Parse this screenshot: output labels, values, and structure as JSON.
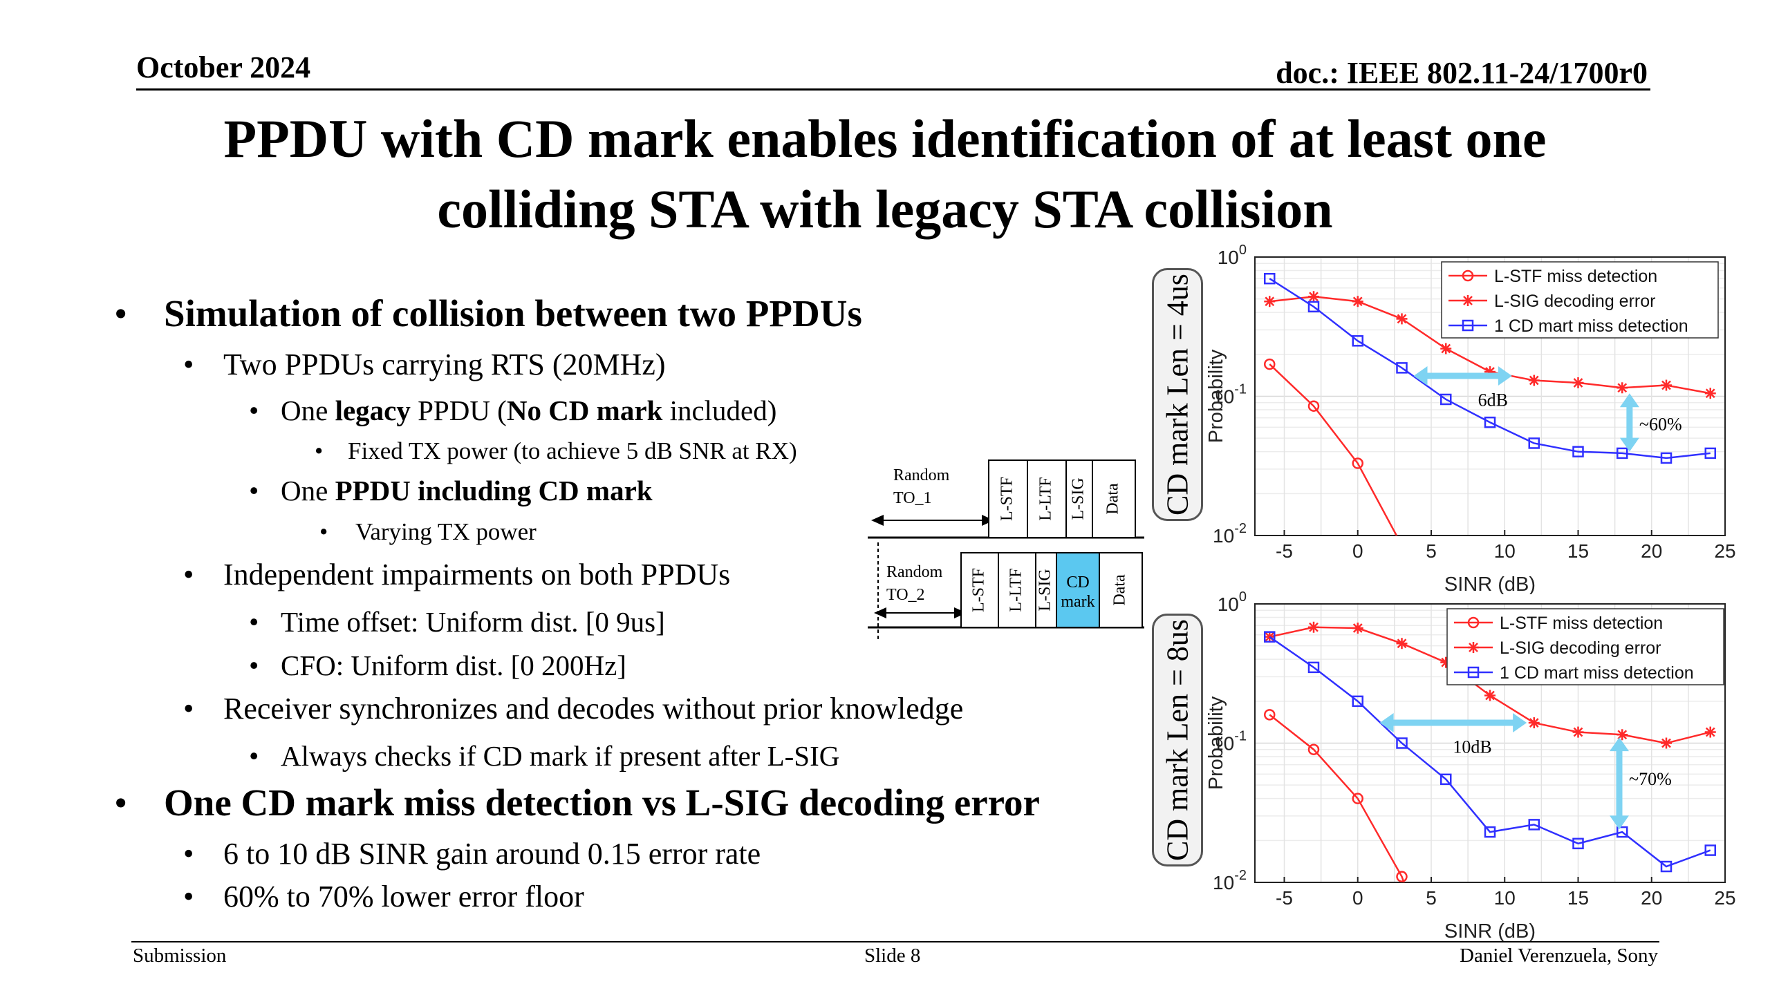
{
  "header": {
    "date": "October 2024",
    "doc": "doc.: IEEE 802.11-24/1700r0"
  },
  "title": {
    "line1": "PPDU with CD mark enables identification of at least one",
    "line2": "colliding STA with legacy STA collision"
  },
  "bullets": {
    "b1": "Simulation of collision between two PPDUs",
    "b1_1": "Two PPDUs carrying RTS (20MHz)",
    "b1_1_1": {
      "pre": "One ",
      "bold1": "legacy",
      "mid": " PPDU (",
      "bold2": "No CD mark",
      "post": " included)"
    },
    "b1_1_1_1": "Fixed TX power (to achieve 5 dB SNR at RX)",
    "b1_1_2": {
      "pre": "One ",
      "bold": "PPDU including CD mark"
    },
    "b1_1_2_1": "Varying TX power",
    "b1_2": "Independent impairments on both PPDUs",
    "b1_2_1": "Time offset: Uniform dist. [0 9us]",
    "b1_2_2": "CFO: Uniform dist. [0 200Hz]",
    "b1_3": "Receiver synchronizes and decodes without prior knowledge",
    "b1_3_1": "Always checks if CD mark if present after L-SIG",
    "b2": "One CD mark miss detection vs L-SIG decoding error",
    "b2_1": "6 to 10 dB SINR gain around 0.15 error rate",
    "b2_2": "60% to 70% lower error floor",
    "bullet_char": "•"
  },
  "ppdu_diagram": {
    "row1": {
      "offset_label": "Random TO_1",
      "fields": [
        "L-STF",
        "L-LTF",
        "L-SIG",
        "Data"
      ]
    },
    "row2": {
      "offset_label": "Random TO_2",
      "fields": [
        "L-STF",
        "L-LTF",
        "L-SIG",
        "CD mark",
        "Data"
      ]
    },
    "cd_mark_color": "#5bc8f0"
  },
  "side_labels": {
    "top": "CD mark Len = 4us",
    "bottom": "CD mark Len = 8us"
  },
  "chart_data": [
    {
      "type": "line",
      "xlabel": "SINR (dB)",
      "ylabel": "Probability",
      "xlim": [
        -7,
        25
      ],
      "ylim": [
        0.01,
        1
      ],
      "yscale": "log",
      "xticks": [
        -5,
        0,
        5,
        10,
        15,
        20,
        25
      ],
      "ytick_labels": [
        "10^0",
        "10^-1",
        "10^-2"
      ],
      "grid": true,
      "legend_position": "top-right",
      "x": [
        -6,
        -3,
        0,
        3,
        6,
        9,
        12,
        15,
        18,
        21,
        24
      ],
      "series": [
        {
          "name": "L-STF miss detection",
          "color": "#ff2a2a",
          "marker": "circle",
          "values": [
            0.17,
            0.085,
            0.033,
            0.0085,
            null,
            null,
            null,
            null,
            null,
            null,
            null
          ]
        },
        {
          "name": "L-SIG decoding error",
          "color": "#ff2a2a",
          "marker": "star",
          "values": [
            0.48,
            0.52,
            0.48,
            0.36,
            0.22,
            0.15,
            0.13,
            0.125,
            0.115,
            0.12,
            0.105
          ]
        },
        {
          "name": "1 CD mart miss detection",
          "color": "#3030ff",
          "marker": "square",
          "values": [
            0.7,
            0.44,
            0.25,
            0.16,
            0.095,
            0.065,
            0.046,
            0.04,
            0.039,
            0.036,
            0.039
          ]
        }
      ],
      "annotations": [
        {
          "text": "6dB"
        },
        {
          "text": "~60%"
        }
      ]
    },
    {
      "type": "line",
      "xlabel": "SINR (dB)",
      "ylabel": "Probability",
      "xlim": [
        -7,
        25
      ],
      "ylim": [
        0.01,
        1
      ],
      "yscale": "log",
      "xticks": [
        -5,
        0,
        5,
        10,
        15,
        20,
        25
      ],
      "ytick_labels": [
        "10^0",
        "10^-1",
        "10^-2"
      ],
      "grid": true,
      "legend_position": "top-right",
      "x": [
        -6,
        -3,
        0,
        3,
        6,
        9,
        12,
        15,
        18,
        21,
        24
      ],
      "series": [
        {
          "name": "L-STF miss detection",
          "color": "#ff2a2a",
          "marker": "circle",
          "values": [
            0.16,
            0.09,
            0.04,
            0.011,
            null,
            null,
            null,
            null,
            null,
            null,
            null
          ]
        },
        {
          "name": "L-SIG decoding error",
          "color": "#ff2a2a",
          "marker": "star",
          "values": [
            0.58,
            0.68,
            0.67,
            0.52,
            0.38,
            0.22,
            0.14,
            0.12,
            0.115,
            0.1,
            0.12
          ]
        },
        {
          "name": "1 CD mart miss detection",
          "color": "#3030ff",
          "marker": "square",
          "values": [
            0.58,
            0.35,
            0.2,
            0.1,
            0.055,
            0.023,
            0.026,
            0.019,
            0.023,
            0.013,
            0.017
          ]
        }
      ],
      "annotations": [
        {
          "text": "10dB"
        },
        {
          "text": "~70%"
        }
      ]
    }
  ],
  "footer": {
    "left": "Submission",
    "center": "Slide 8",
    "right": "Daniel Verenzuela, Sony"
  }
}
